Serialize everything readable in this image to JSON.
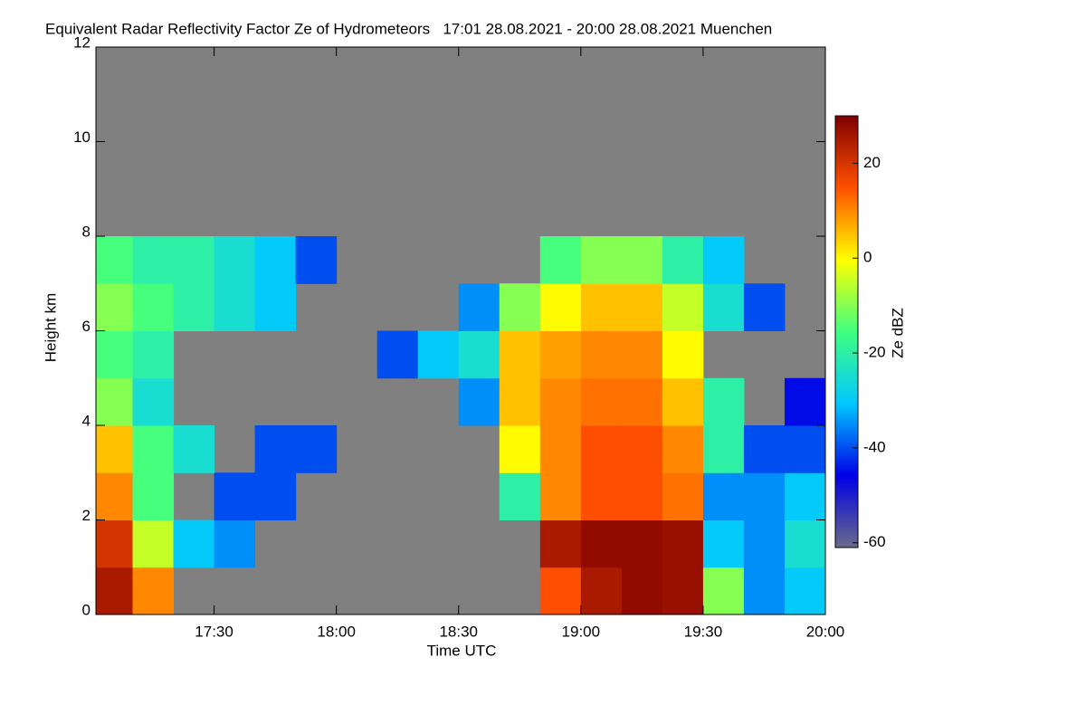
{
  "chart_data": {
    "type": "heatmap",
    "title": "Equivalent Radar Reflectivity Factor Ze of Hydrometeors   17:01 28.08.2021 - 20:00 28.08.2021 Muenchen",
    "x_label": "Time UTC",
    "y_label": "Height km",
    "colorbar_label": "Ze dBZ",
    "background_color": "#808080",
    "colormap": [
      "#6a6a8a",
      "#0000e6",
      "#00c8ff",
      "#40ff80",
      "#ffff00",
      "#ff5000",
      "#800000"
    ],
    "xlim": [
      1021,
      1200
    ],
    "xticks": [
      {
        "value": 1050,
        "label": "17:30"
      },
      {
        "value": 1080,
        "label": "18:00"
      },
      {
        "value": 1110,
        "label": "18:30"
      },
      {
        "value": 1140,
        "label": "19:00"
      },
      {
        "value": 1170,
        "label": "19:30"
      },
      {
        "value": 1200,
        "label": "20:00"
      }
    ],
    "ylim": [
      0,
      12
    ],
    "yticks": [
      0,
      2,
      4,
      6,
      8,
      10,
      12
    ],
    "zlim": [
      -61,
      30
    ],
    "zticks": [
      20,
      0,
      -20,
      -40,
      -60
    ],
    "xbins": [
      1021,
      1030,
      1040,
      1050,
      1060,
      1070,
      1080,
      1090,
      1100,
      1110,
      1120,
      1130,
      1140,
      1150,
      1160,
      1170,
      1180,
      1190,
      1200
    ],
    "ybins": [
      0,
      1,
      2,
      3,
      4,
      5,
      6,
      7,
      8,
      9,
      10,
      11,
      12
    ],
    "z": [
      [
        25,
        10,
        null,
        null,
        null,
        null,
        null,
        null,
        null,
        null,
        null,
        15,
        25,
        28,
        27,
        -10,
        -35,
        -30
      ],
      [
        20,
        -5,
        -30,
        -35,
        null,
        null,
        null,
        null,
        null,
        null,
        null,
        25,
        28,
        28,
        27,
        -30,
        -35,
        -25
      ],
      [
        10,
        -15,
        null,
        -40,
        -40,
        null,
        null,
        null,
        null,
        null,
        -20,
        10,
        15,
        15,
        12,
        -35,
        -35,
        -30
      ],
      [
        5,
        -15,
        -25,
        null,
        -40,
        -40,
        null,
        null,
        null,
        null,
        0,
        10,
        15,
        15,
        10,
        -20,
        -40,
        -40
      ],
      [
        -10,
        -25,
        null,
        null,
        null,
        null,
        null,
        null,
        null,
        -35,
        5,
        10,
        12,
        12,
        5,
        -20,
        null,
        -45
      ],
      [
        -15,
        -20,
        null,
        null,
        null,
        null,
        null,
        -40,
        -30,
        -25,
        5,
        8,
        10,
        10,
        0,
        null,
        null,
        null
      ],
      [
        -10,
        -15,
        -20,
        -25,
        -30,
        null,
        null,
        null,
        null,
        -35,
        -10,
        0,
        5,
        5,
        -5,
        -25,
        -40,
        null
      ],
      [
        -15,
        -20,
        -20,
        -25,
        -30,
        -40,
        null,
        null,
        null,
        null,
        null,
        -15,
        -10,
        -10,
        -20,
        -30,
        null,
        null
      ],
      [
        null,
        null,
        null,
        null,
        null,
        null,
        null,
        null,
        null,
        null,
        null,
        null,
        null,
        null,
        null,
        null,
        null,
        null
      ],
      [
        null,
        null,
        null,
        null,
        null,
        null,
        null,
        null,
        null,
        null,
        null,
        null,
        null,
        null,
        null,
        null,
        null,
        null
      ],
      [
        null,
        null,
        null,
        null,
        null,
        null,
        null,
        null,
        null,
        null,
        null,
        null,
        null,
        null,
        null,
        null,
        null,
        null
      ],
      [
        null,
        null,
        null,
        null,
        null,
        null,
        null,
        null,
        null,
        null,
        null,
        null,
        null,
        null,
        null,
        null,
        null,
        null
      ]
    ]
  }
}
